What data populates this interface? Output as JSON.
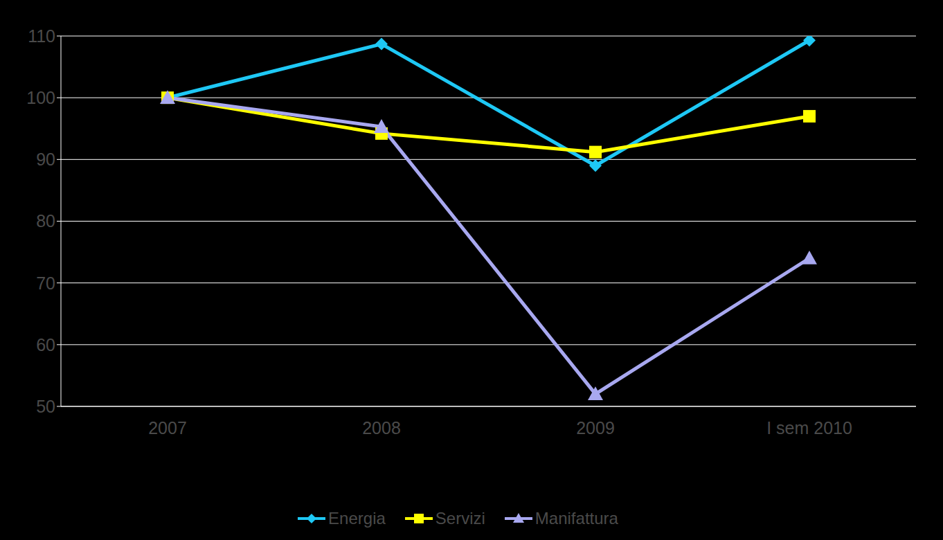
{
  "chart_data": {
    "type": "line",
    "categories": [
      "2007",
      "2008",
      "2009",
      "I sem 2010"
    ],
    "series": [
      {
        "name": "Energia",
        "color": "#1ec8f5",
        "marker": "diamond",
        "values": [
          100,
          108.7,
          89,
          109.3
        ]
      },
      {
        "name": "Servizi",
        "color": "#ffff00",
        "marker": "square",
        "values": [
          100,
          94.2,
          91.2,
          97
        ]
      },
      {
        "name": "Manifattura",
        "color": "#a8a8f0",
        "marker": "triangle",
        "values": [
          100,
          95.3,
          52,
          74
        ]
      }
    ],
    "ylim": [
      50,
      110
    ],
    "yticks": [
      50,
      60,
      70,
      80,
      90,
      100,
      110
    ],
    "grid": true,
    "legend": "bottom"
  }
}
